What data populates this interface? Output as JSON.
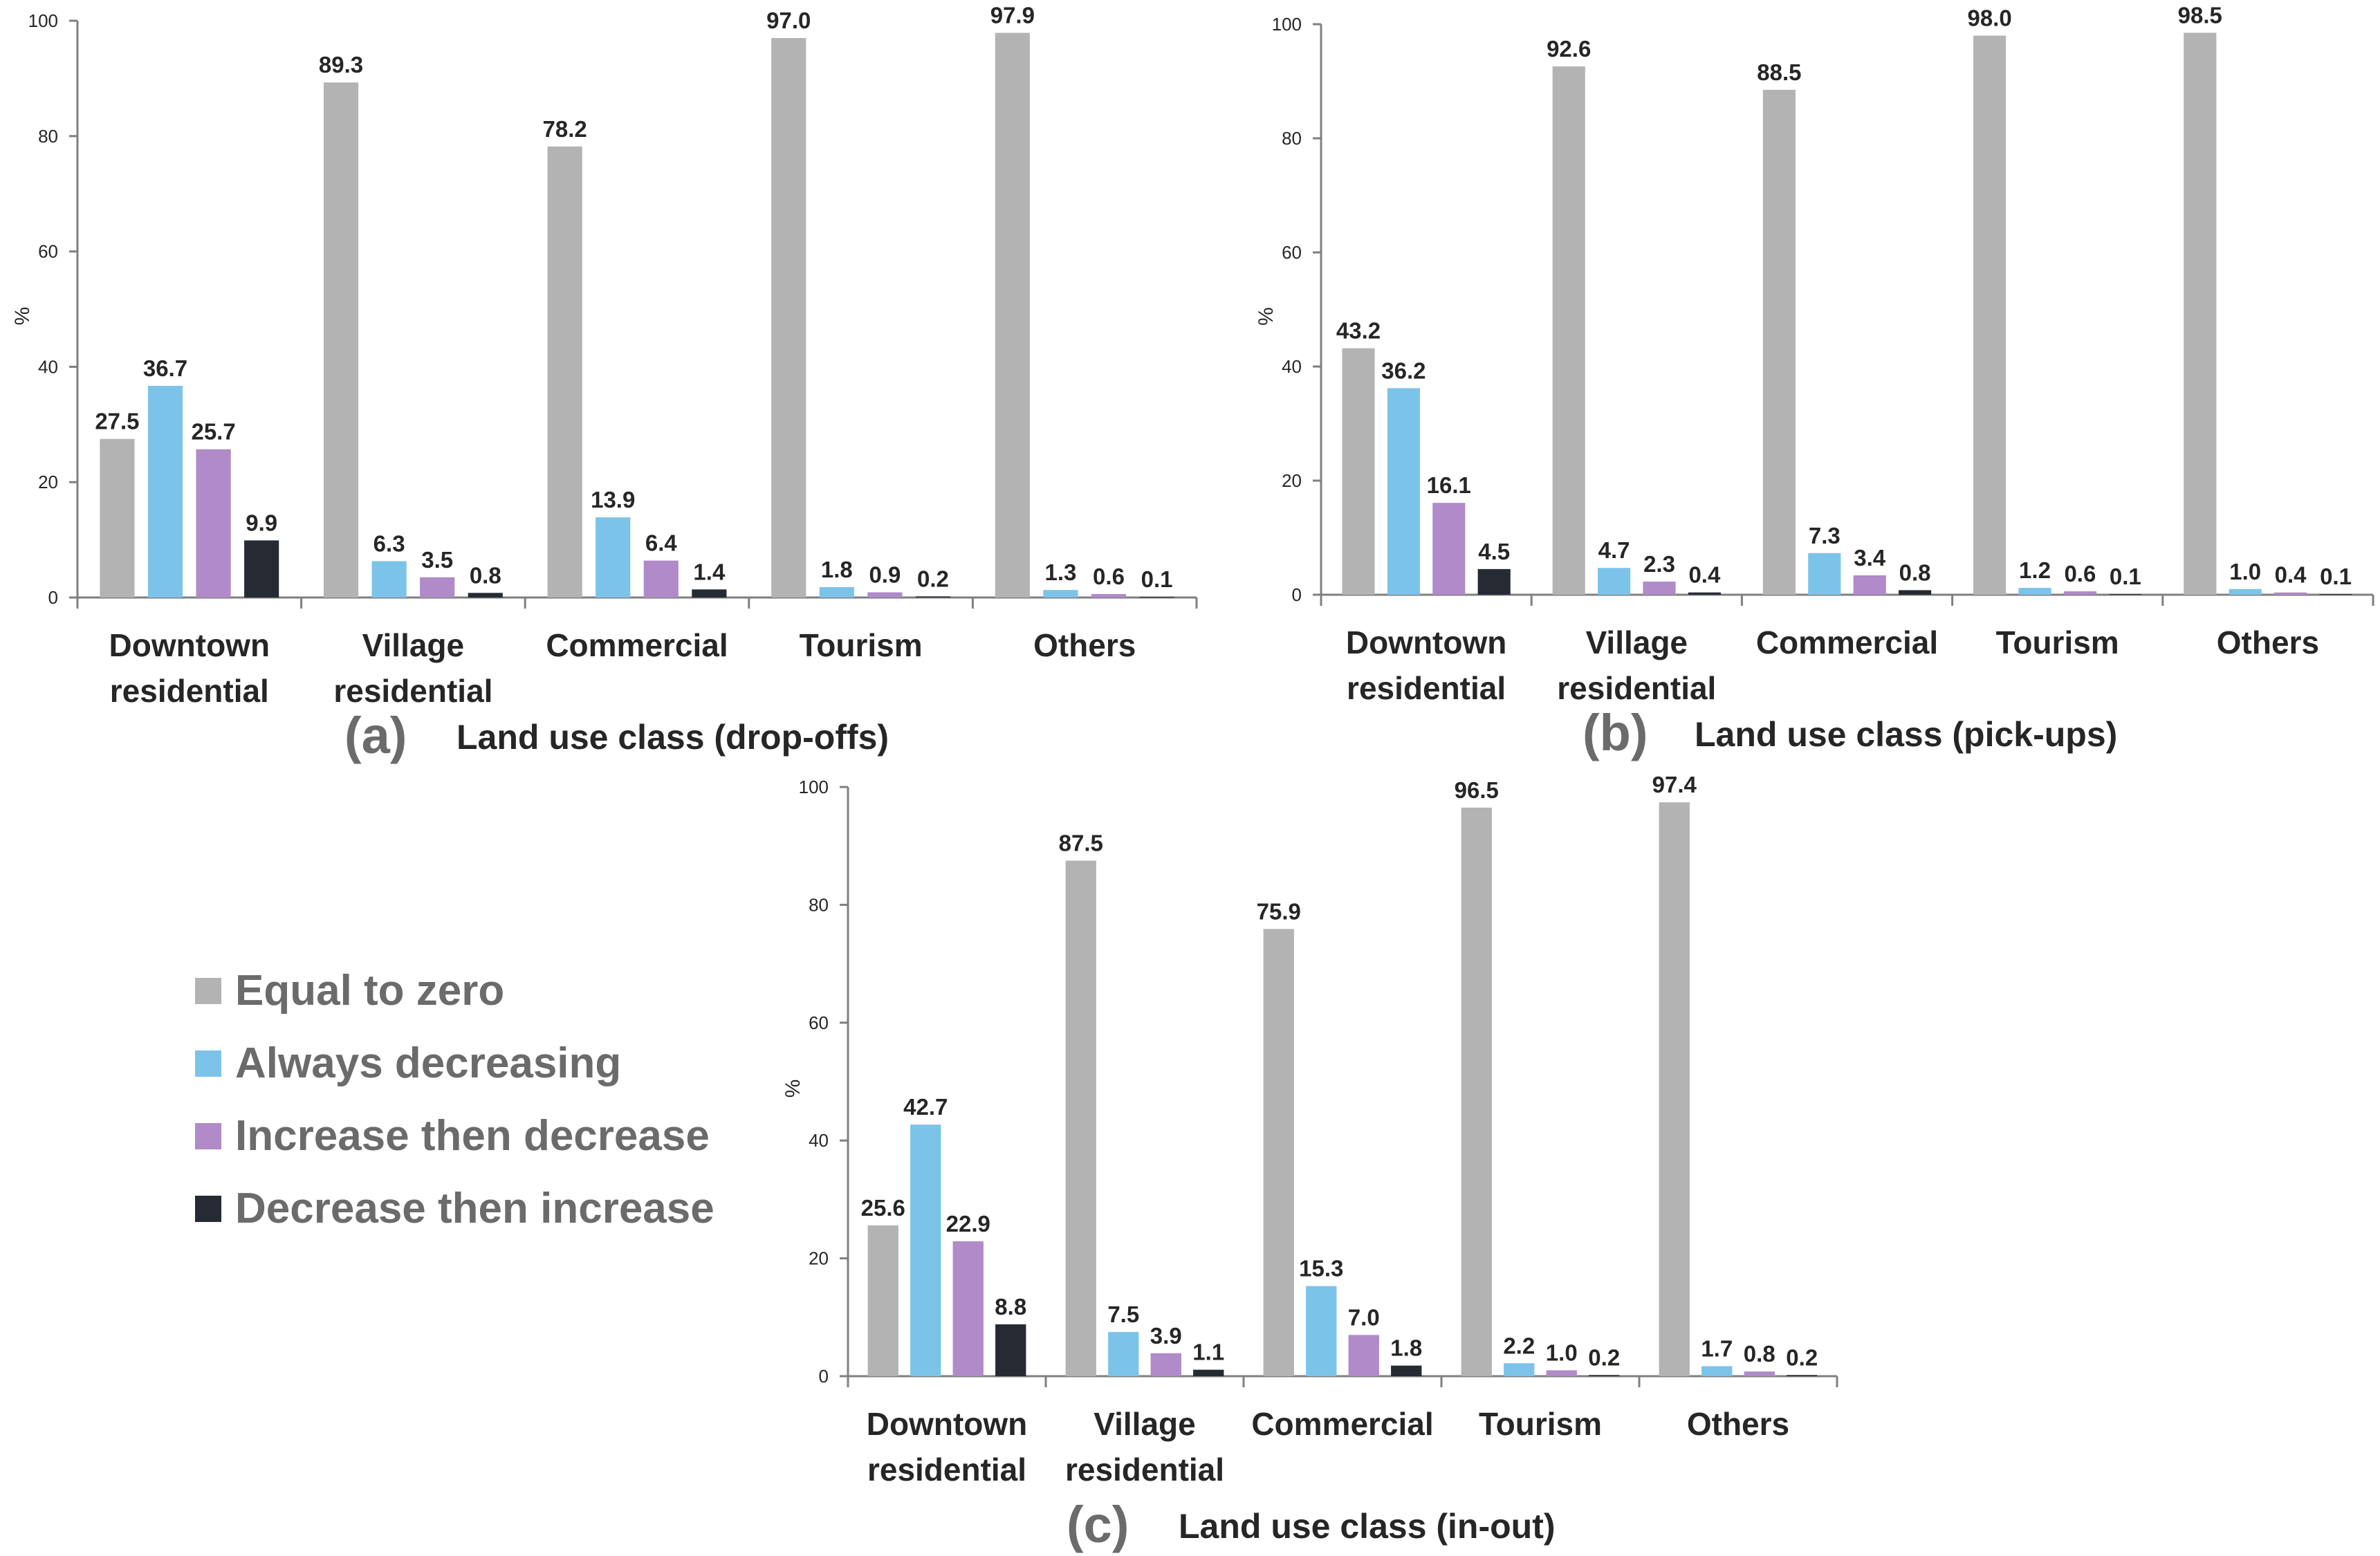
{
  "colors": {
    "equal_to_zero": "#b3b3b3",
    "always_decreasing": "#7cc3ea",
    "increase_then_decrease": "#b08ac9",
    "decrease_then_increase": "#262a33",
    "axis": "#7f7f7f",
    "text": "#262626",
    "panel_letter": "#6b6b6b"
  },
  "legend": {
    "items": [
      {
        "label": "Equal to zero",
        "color": "#b3b3b3"
      },
      {
        "label": "Always decreasing",
        "color": "#7cc3ea"
      },
      {
        "label": "Increase then decrease",
        "color": "#b08ac9"
      },
      {
        "label": "Decrease then increase",
        "color": "#262a33"
      }
    ]
  },
  "chart_data": [
    {
      "type": "bar",
      "panel": "(a)",
      "xlabel": "Land use class (drop-offs)",
      "ylabel": "%",
      "ylim": [
        0,
        100
      ],
      "yticks": [
        0,
        20,
        40,
        60,
        80,
        100
      ],
      "categories": [
        [
          "Downtown",
          "residential"
        ],
        [
          "Village",
          "residential"
        ],
        [
          "Commercial"
        ],
        [
          "Tourism"
        ],
        [
          "Others"
        ]
      ],
      "series": [
        {
          "name": "Equal to zero",
          "values": [
            27.5,
            89.3,
            78.2,
            97.0,
            97.9
          ]
        },
        {
          "name": "Always decreasing",
          "values": [
            36.7,
            6.3,
            13.9,
            1.8,
            1.3
          ]
        },
        {
          "name": "Increase then decrease",
          "values": [
            25.7,
            3.5,
            6.4,
            0.9,
            0.6
          ]
        },
        {
          "name": "Decrease then increase",
          "values": [
            9.9,
            0.8,
            1.4,
            0.2,
            0.1
          ]
        }
      ]
    },
    {
      "type": "bar",
      "panel": "(b)",
      "xlabel": "Land use class (pick-ups)",
      "ylabel": "%",
      "ylim": [
        0,
        100
      ],
      "yticks": [
        0,
        20,
        40,
        60,
        80,
        100
      ],
      "categories": [
        [
          "Downtown",
          "residential"
        ],
        [
          "Village",
          "residential"
        ],
        [
          "Commercial"
        ],
        [
          "Tourism"
        ],
        [
          "Others"
        ]
      ],
      "series": [
        {
          "name": "Equal to zero",
          "values": [
            43.2,
            92.6,
            88.5,
            98.0,
            98.5
          ]
        },
        {
          "name": "Always decreasing",
          "values": [
            36.2,
            4.7,
            7.3,
            1.2,
            1.0
          ]
        },
        {
          "name": "Increase then decrease",
          "values": [
            16.1,
            2.3,
            3.4,
            0.6,
            0.4
          ]
        },
        {
          "name": "Decrease then increase",
          "values": [
            4.5,
            0.4,
            0.8,
            0.1,
            0.1
          ]
        }
      ]
    },
    {
      "type": "bar",
      "panel": "(c)",
      "xlabel": "Land use class (in-out)",
      "ylabel": "%",
      "ylim": [
        0,
        100
      ],
      "yticks": [
        0,
        20,
        40,
        60,
        80,
        100
      ],
      "categories": [
        [
          "Downtown",
          "residential"
        ],
        [
          "Village",
          "residential"
        ],
        [
          "Commercial"
        ],
        [
          "Tourism"
        ],
        [
          "Others"
        ]
      ],
      "series": [
        {
          "name": "Equal to zero",
          "values": [
            25.6,
            87.5,
            75.9,
            96.5,
            97.4
          ]
        },
        {
          "name": "Always decreasing",
          "values": [
            42.7,
            7.5,
            15.3,
            2.2,
            1.7
          ]
        },
        {
          "name": "Increase then decrease",
          "values": [
            22.9,
            3.9,
            7.0,
            1.0,
            0.8
          ]
        },
        {
          "name": "Decrease then increase",
          "values": [
            8.8,
            1.1,
            1.8,
            0.2,
            0.2
          ]
        }
      ]
    }
  ]
}
